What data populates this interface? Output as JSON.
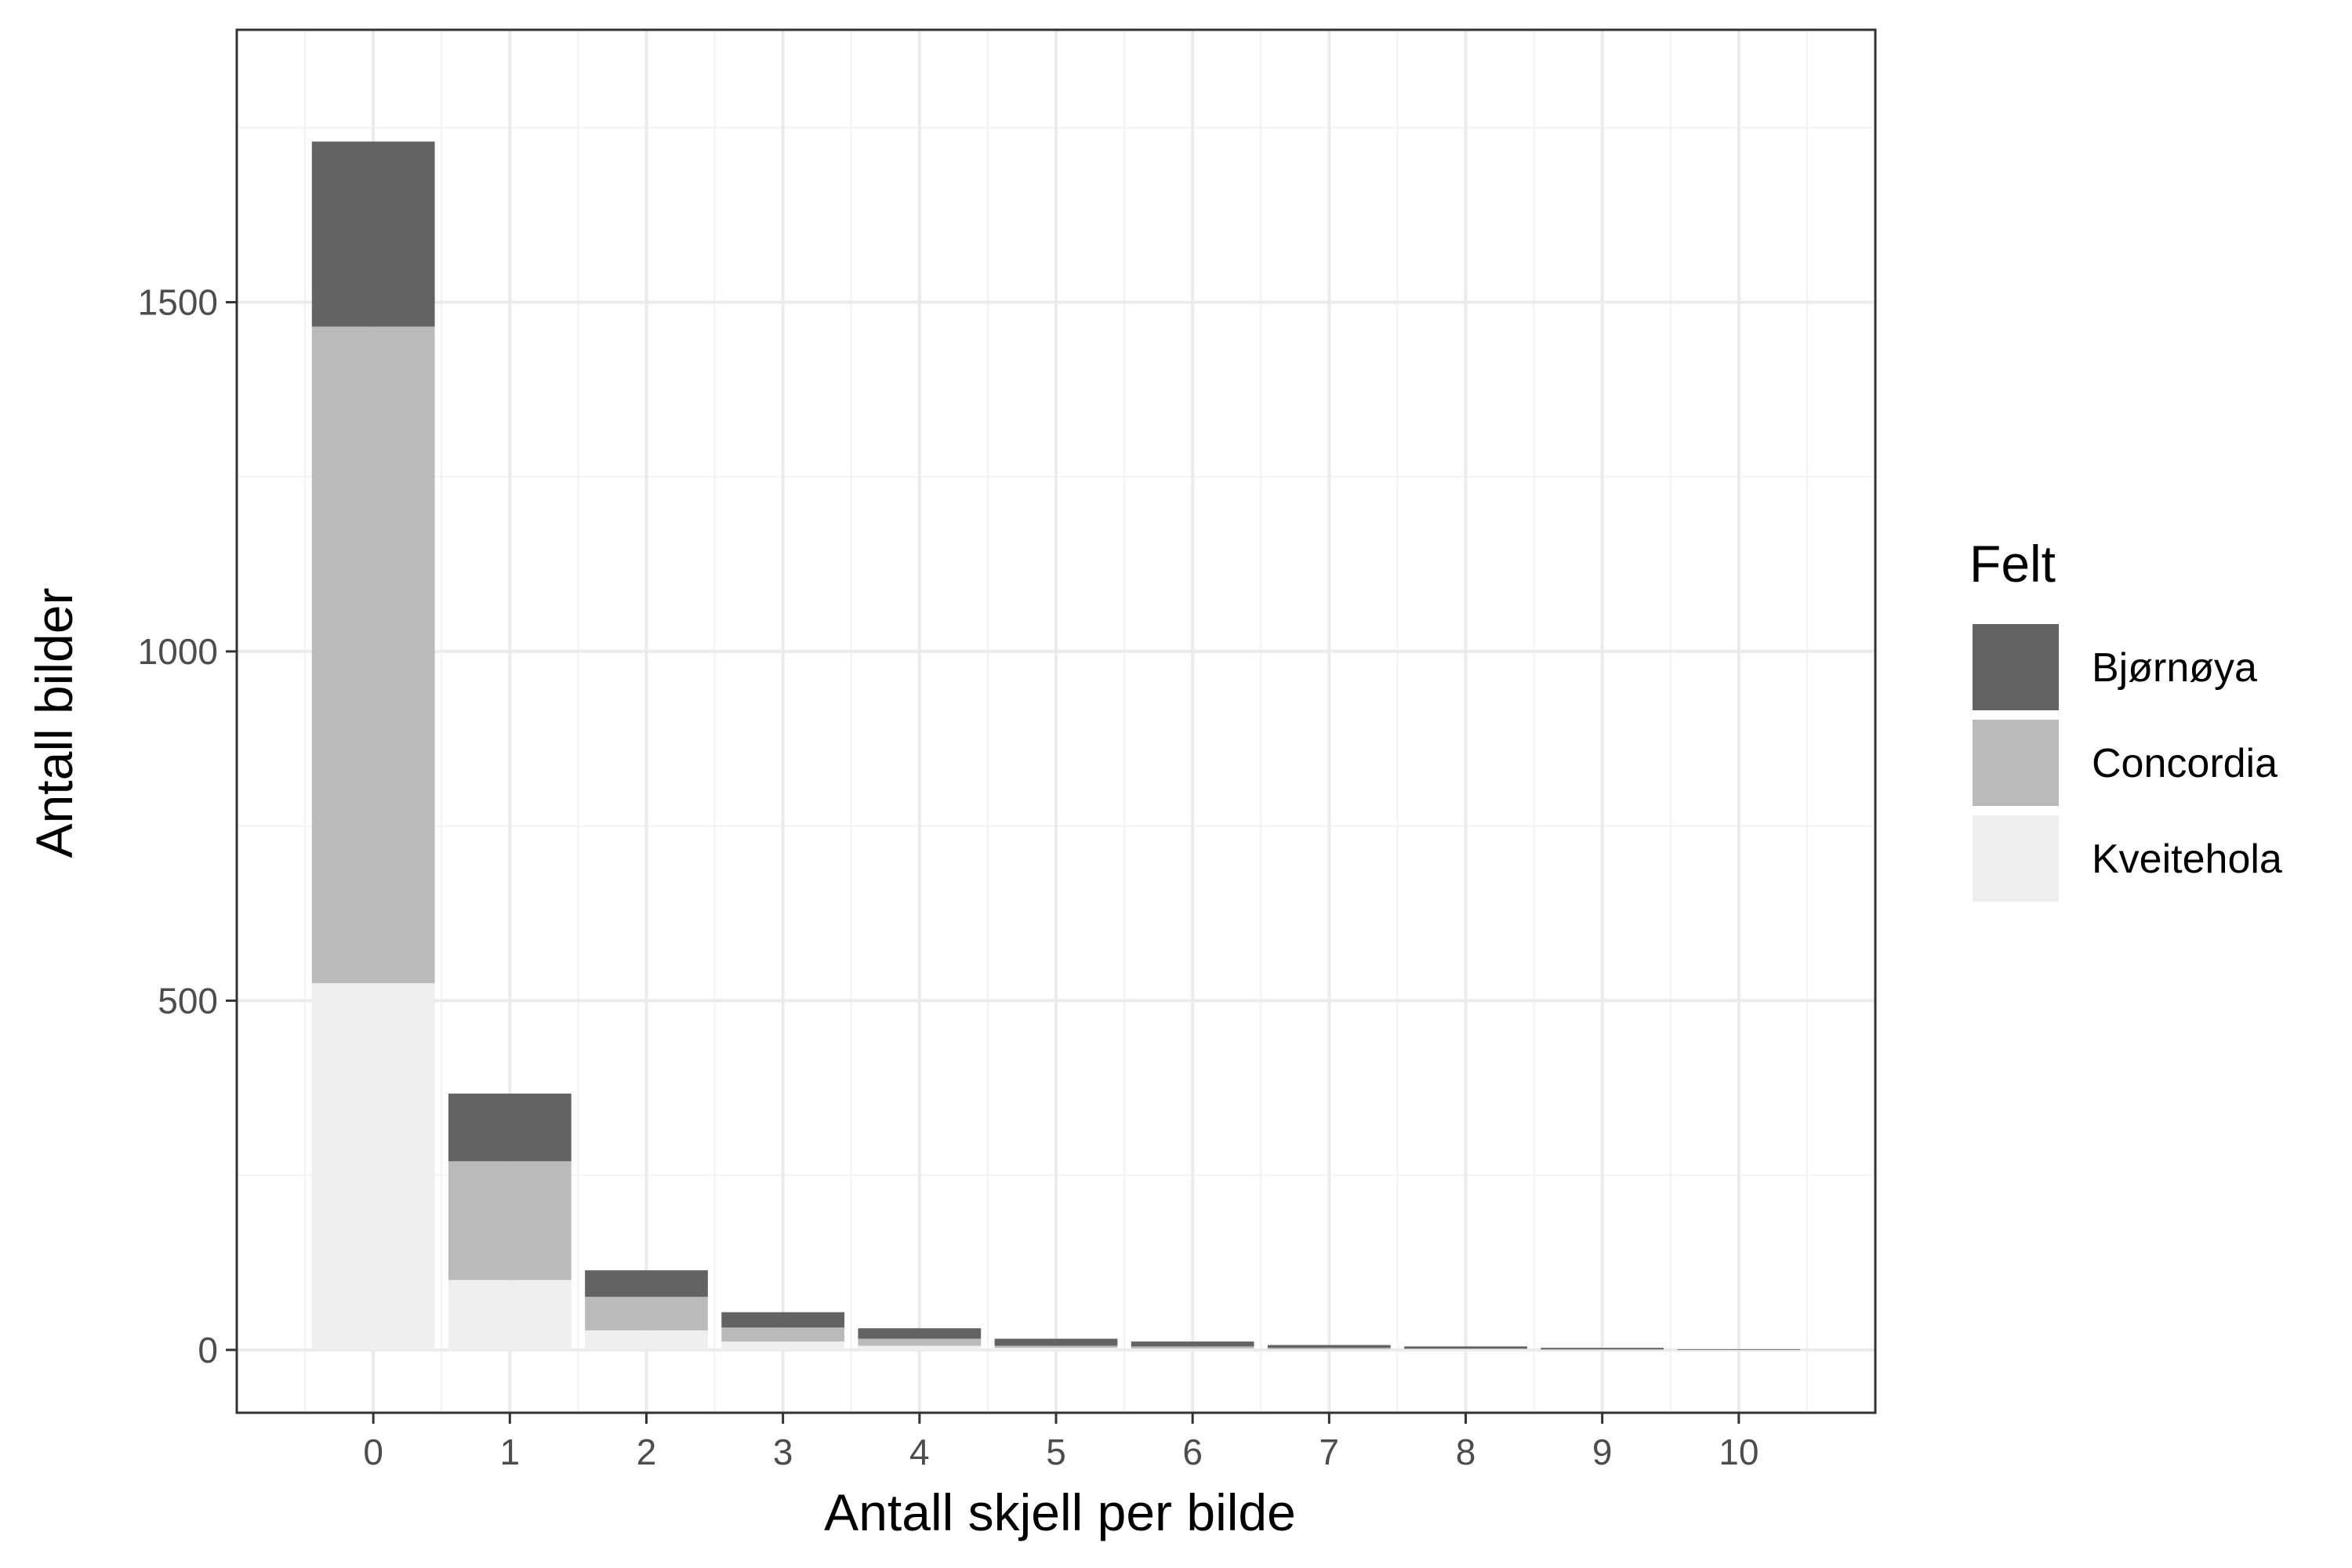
{
  "chart_data": {
    "type": "bar",
    "stacked": true,
    "xlabel": "Antall skjell per bilde",
    "ylabel": "Antall bilder",
    "categories": [
      "0",
      "1",
      "2",
      "3",
      "4",
      "5",
      "6",
      "7",
      "8",
      "9",
      "10"
    ],
    "x": [
      0,
      1,
      2,
      3,
      4,
      5,
      6,
      7,
      8,
      9,
      10
    ],
    "xlim": [
      -1,
      11
    ],
    "ylim": [
      -90,
      1890
    ],
    "yticks": [
      0,
      500,
      1000,
      1500
    ],
    "ytick_labels": [
      "0",
      "500",
      "1000",
      "1500"
    ],
    "grid": true,
    "legend": {
      "title": "Felt",
      "placement": "right"
    },
    "series": [
      {
        "name": "Kveitehola",
        "color": "#efefef",
        "values": [
          525,
          100,
          28,
          12,
          6,
          3,
          2,
          1,
          1,
          0,
          0
        ]
      },
      {
        "name": "Concordia",
        "color": "#bababa",
        "values": [
          940,
          170,
          48,
          20,
          10,
          3,
          3,
          2,
          1,
          1,
          0
        ]
      },
      {
        "name": "Bjørnøya",
        "color": "#636363",
        "values": [
          265,
          97,
          38,
          22,
          15,
          10,
          7,
          4,
          3,
          2,
          1
        ]
      }
    ],
    "legend_order": [
      "Bjørnøya",
      "Concordia",
      "Kveitehola"
    ]
  }
}
